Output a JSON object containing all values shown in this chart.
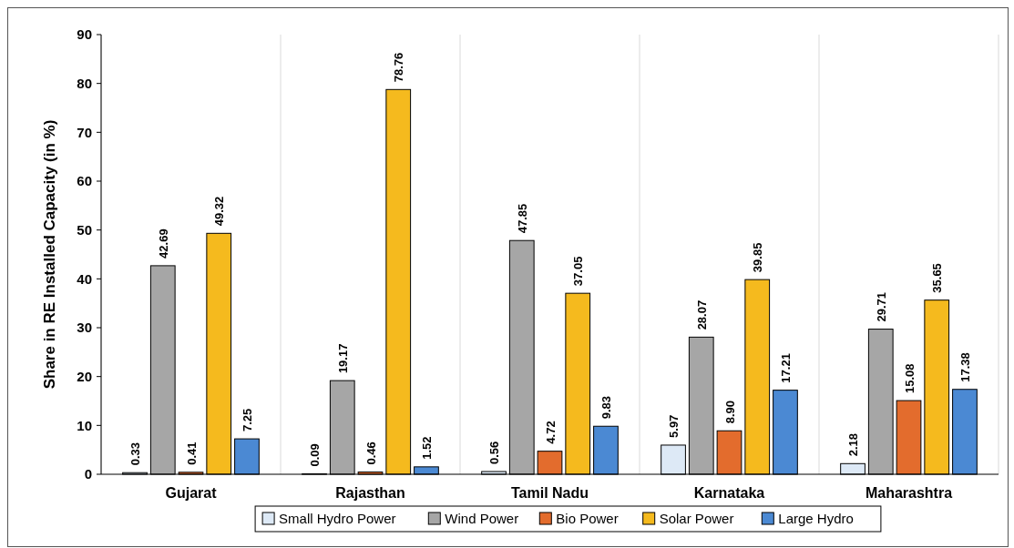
{
  "chart_data": {
    "type": "bar",
    "ylabel": "Share in RE Installed Capacity (in %)",
    "categories": [
      "Gujarat",
      "Rajasthan",
      "Tamil Nadu",
      "Karnataka",
      "Maharashtra"
    ],
    "series": [
      {
        "name": "Small Hydro Power",
        "color": "#dde9f6",
        "values": [
          0.33,
          0.09,
          0.56,
          5.97,
          2.18
        ],
        "value_labels": [
          "0.33",
          "0.09",
          "0.56",
          "5.97",
          "2.18"
        ]
      },
      {
        "name": "Wind Power",
        "color": "#a6a6a6",
        "values": [
          42.69,
          19.17,
          47.85,
          28.07,
          29.71
        ],
        "value_labels": [
          "42.69",
          "19.17",
          "47.85",
          "28.07",
          "29.71"
        ]
      },
      {
        "name": "Bio Power",
        "color": "#e36c2d",
        "values": [
          0.41,
          0.46,
          4.72,
          8.9,
          15.08
        ],
        "value_labels": [
          "0.41",
          "0.46",
          "4.72",
          "8.90",
          "15.08"
        ]
      },
      {
        "name": "Solar Power",
        "color": "#f5ba1e",
        "values": [
          49.32,
          78.76,
          37.05,
          39.85,
          35.65
        ],
        "value_labels": [
          "49.32",
          "78.76",
          "37.05",
          "39.85",
          "35.65"
        ]
      },
      {
        "name": "Large Hydro",
        "color": "#4b89d3",
        "values": [
          7.25,
          1.52,
          9.83,
          17.21,
          17.38
        ],
        "value_labels": [
          "7.25",
          "1.52",
          "9.83",
          "17.21",
          "17.38"
        ]
      }
    ],
    "ylim": [
      0,
      90
    ],
    "yticks": [
      0,
      10,
      20,
      30,
      40,
      50,
      60,
      70,
      80,
      90
    ],
    "grid": "x",
    "legend": "bottom"
  }
}
